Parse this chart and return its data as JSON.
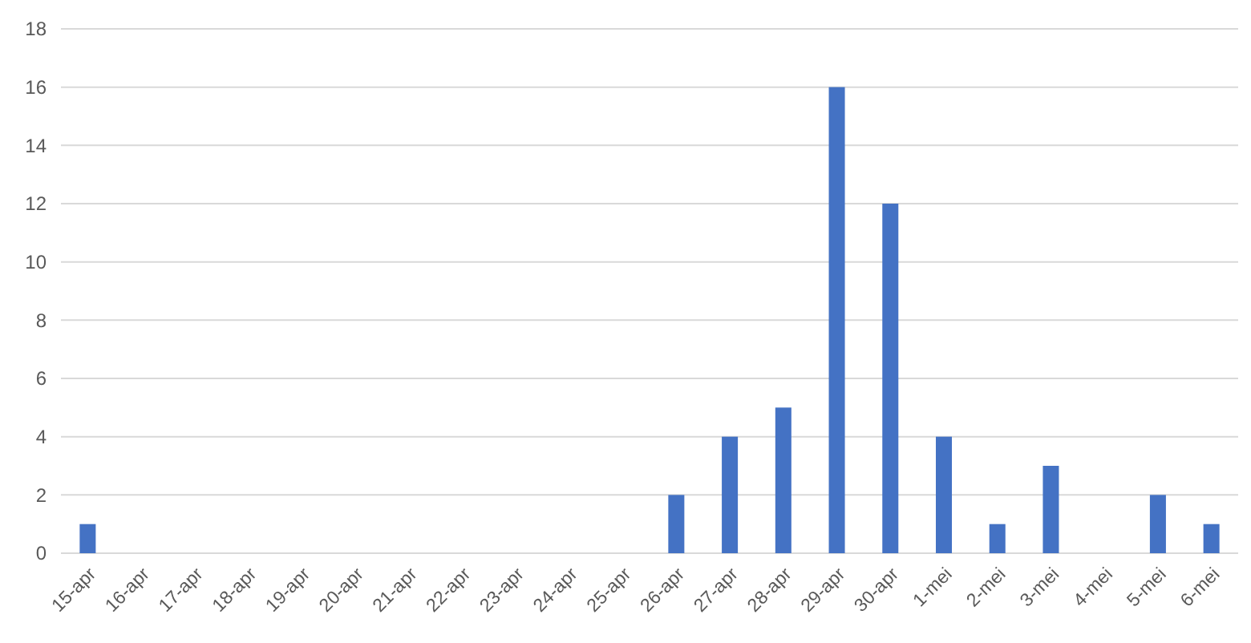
{
  "chart_data": {
    "type": "bar",
    "categories": [
      "15-apr",
      "16-apr",
      "17-apr",
      "18-apr",
      "19-apr",
      "20-apr",
      "21-apr",
      "22-apr",
      "23-apr",
      "24-apr",
      "25-apr",
      "26-apr",
      "27-apr",
      "28-apr",
      "29-apr",
      "30-apr",
      "1-mei",
      "2-mei",
      "3-mei",
      "4-mei",
      "5-mei",
      "6-mei"
    ],
    "values": [
      1,
      0,
      0,
      0,
      0,
      0,
      0,
      0,
      0,
      0,
      0,
      2,
      4,
      5,
      16,
      12,
      4,
      1,
      3,
      0,
      2,
      1
    ],
    "color": "#4472c4",
    "ylim": [
      0,
      18
    ],
    "yticks": [
      0,
      2,
      4,
      6,
      8,
      10,
      12,
      14,
      16,
      18
    ],
    "grid": "y"
  }
}
